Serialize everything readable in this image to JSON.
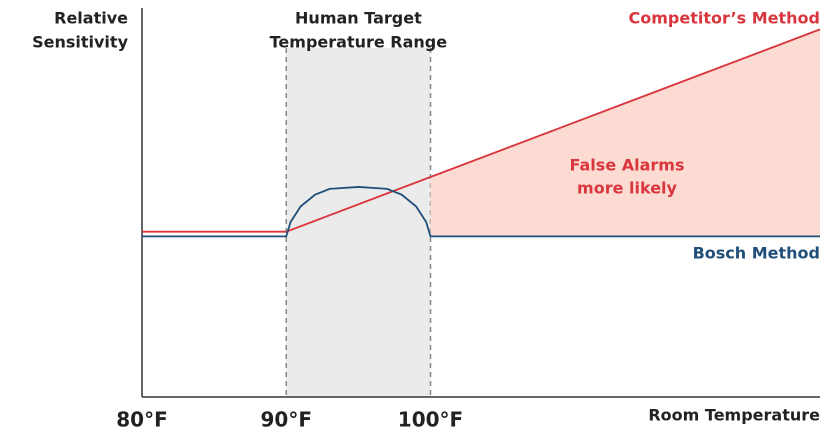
{
  "chart_data": {
    "type": "line",
    "y_label": [
      "Relative",
      "Sensitivity"
    ],
    "x_label": "Room Temperature",
    "xlim": [
      80,
      127
    ],
    "ylim": [
      0,
      100
    ],
    "xticks": [
      {
        "value": 80,
        "label": "80°F"
      },
      {
        "value": 90,
        "label": "90°F"
      },
      {
        "value": 100,
        "label": "100°F"
      }
    ],
    "highlight_range": {
      "range": [
        90,
        100
      ],
      "label": [
        "Human Target",
        "Temperature Range"
      ],
      "color": "#ebebeb"
    },
    "annotation": {
      "text": [
        "False Alarms",
        "more likely"
      ],
      "color": "#d9363e",
      "fill": "#fcdcd2"
    },
    "series": [
      {
        "name": "Competitor’s Method",
        "color": "#d9363e",
        "x": [
          80,
          90,
          127
        ],
        "values": [
          42.5,
          42.5,
          94.5
        ]
      },
      {
        "name": "Bosch Method",
        "color": "#1f4e79",
        "x": [
          80,
          90,
          90.3,
          91,
          92,
          93,
          95,
          97,
          98,
          99,
          99.7,
          100,
          127
        ],
        "values": [
          41.3,
          41.3,
          45,
          49,
          52,
          53.5,
          54,
          53.5,
          52,
          49,
          45,
          41.3,
          41.3
        ]
      }
    ]
  }
}
